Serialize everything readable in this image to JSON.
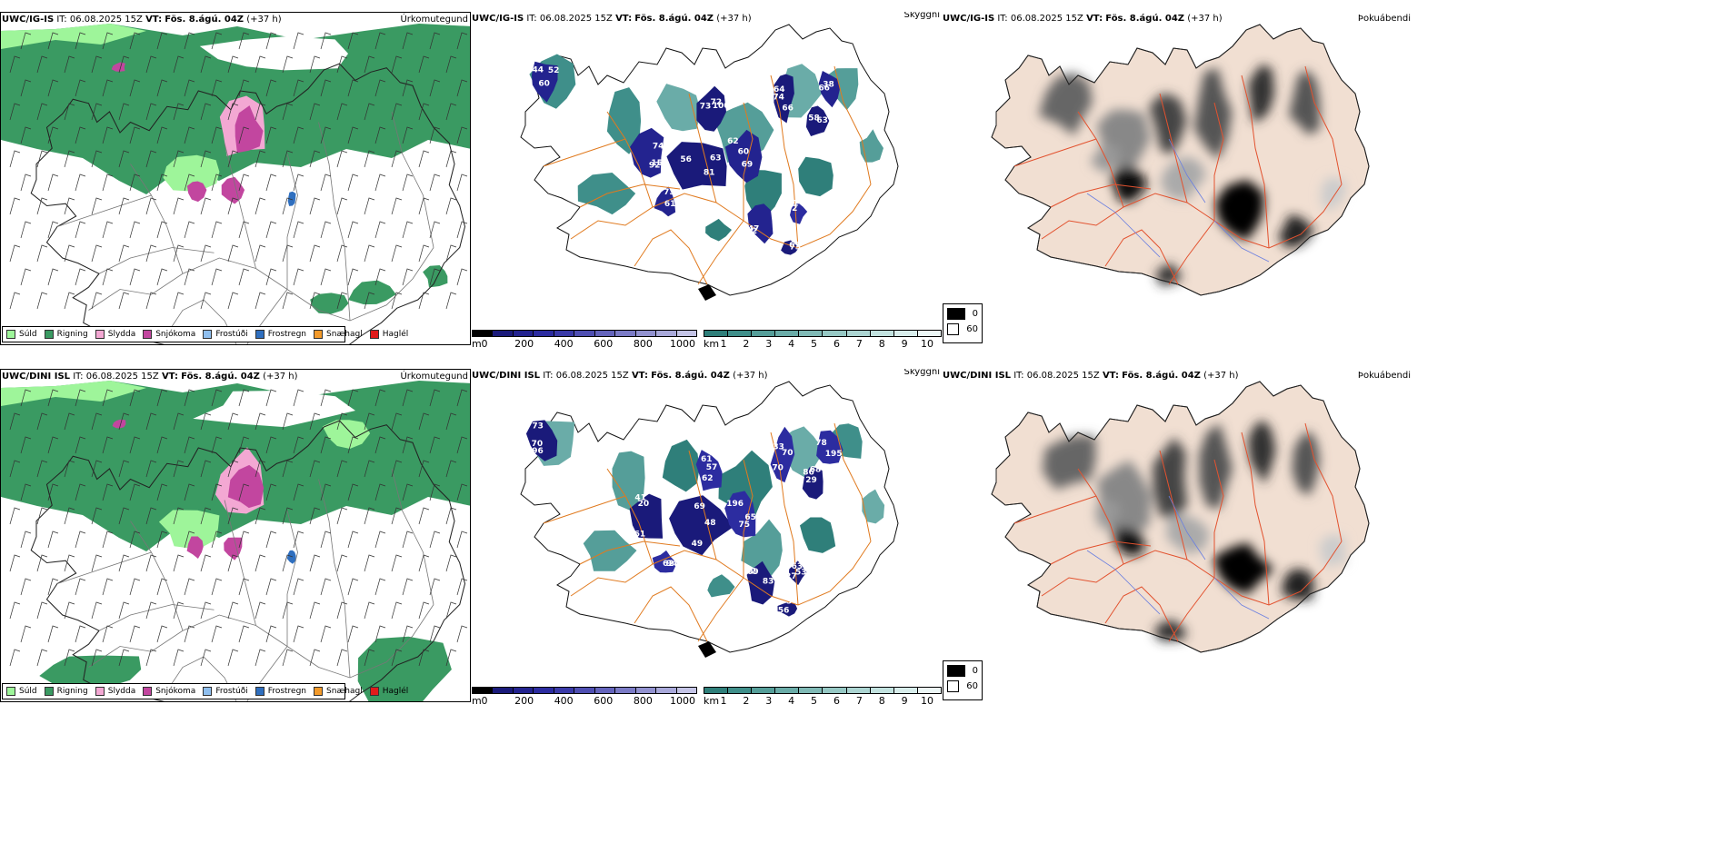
{
  "rows": [
    {
      "model_label": "UWC/IG-IS",
      "it_prefix": "IT:",
      "it_value": "06.08.2025 15Z",
      "vt_prefix": "VT:",
      "vt_value": "Fös. 8.ágú. 04Z",
      "lead": "(+37 h)"
    },
    {
      "model_label": "UWC/DINI ISL",
      "it_prefix": "IT:",
      "it_value": "06.08.2025 15Z",
      "vt_prefix": "VT:",
      "vt_value": "Fös. 8.ágú. 04Z",
      "lead": "(+37 h)"
    }
  ],
  "panel_titles": {
    "precip_type": "Úrkomutegund",
    "visibility": "Skyggni",
    "fog": "Þokuábendi"
  },
  "precip_legend": [
    {
      "label": "Súld",
      "color": "#9ef59a"
    },
    {
      "label": "Rigning",
      "color": "#3a9a62"
    },
    {
      "label": "Slydda",
      "color": "#f3a8d3"
    },
    {
      "label": "Snjókoma",
      "color": "#c2469f"
    },
    {
      "label": "Frostúði",
      "color": "#8fbfef"
    },
    {
      "label": "Frostregn",
      "color": "#2f6fbf"
    },
    {
      "label": "Snæhagl",
      "color": "#f39a2a"
    },
    {
      "label": "Haglél",
      "color": "#e11b1b"
    }
  ],
  "ceiling_bar": {
    "unit": "m",
    "ticks": [
      "0",
      "200",
      "400",
      "600",
      "800",
      "1000"
    ],
    "colors": [
      "#000000",
      "#1a1a7a",
      "#23238f",
      "#2c2ca0",
      "#3a3aa8",
      "#4f4fb2",
      "#6464bc",
      "#7b7bc6",
      "#9292d0",
      "#a9a9da",
      "#c4c4e6"
    ]
  },
  "visibility_bar": {
    "unit": "km",
    "ticks": [
      "1",
      "2",
      "3",
      "4",
      "5",
      "6",
      "7",
      "8",
      "9",
      "10"
    ],
    "colors": [
      "#2f7f7a",
      "#3f8f8a",
      "#559e99",
      "#6aaca8",
      "#80bab6",
      "#96c8c4",
      "#acd5d2",
      "#c2e2df",
      "#d8edeb",
      "#ecf7f6"
    ]
  },
  "fog_legend": [
    {
      "label": "0",
      "color": "#000000"
    },
    {
      "label": "60",
      "color": "#ffffff"
    }
  ],
  "ceiling_labels": [
    [
      "60",
      "92",
      "81",
      "72",
      "69",
      "66",
      "58",
      "47",
      "62",
      "61",
      "38",
      "67",
      "44",
      "156",
      "63",
      "73",
      "62",
      "64",
      "63",
      "92",
      "61",
      "73",
      "66",
      "73",
      "52",
      "74",
      "56",
      "100",
      "60",
      "74"
    ],
    [
      "96",
      "61",
      "48",
      "57",
      "65",
      "70",
      "29",
      "42",
      "53",
      "62",
      "78",
      "56",
      "73",
      "20",
      "69",
      "61",
      "196",
      "33",
      "86",
      "83",
      "63",
      "94",
      "195",
      "54",
      "70",
      "41",
      "49",
      "62",
      "75",
      "70",
      "68",
      "09",
      "27"
    ]
  ]
}
